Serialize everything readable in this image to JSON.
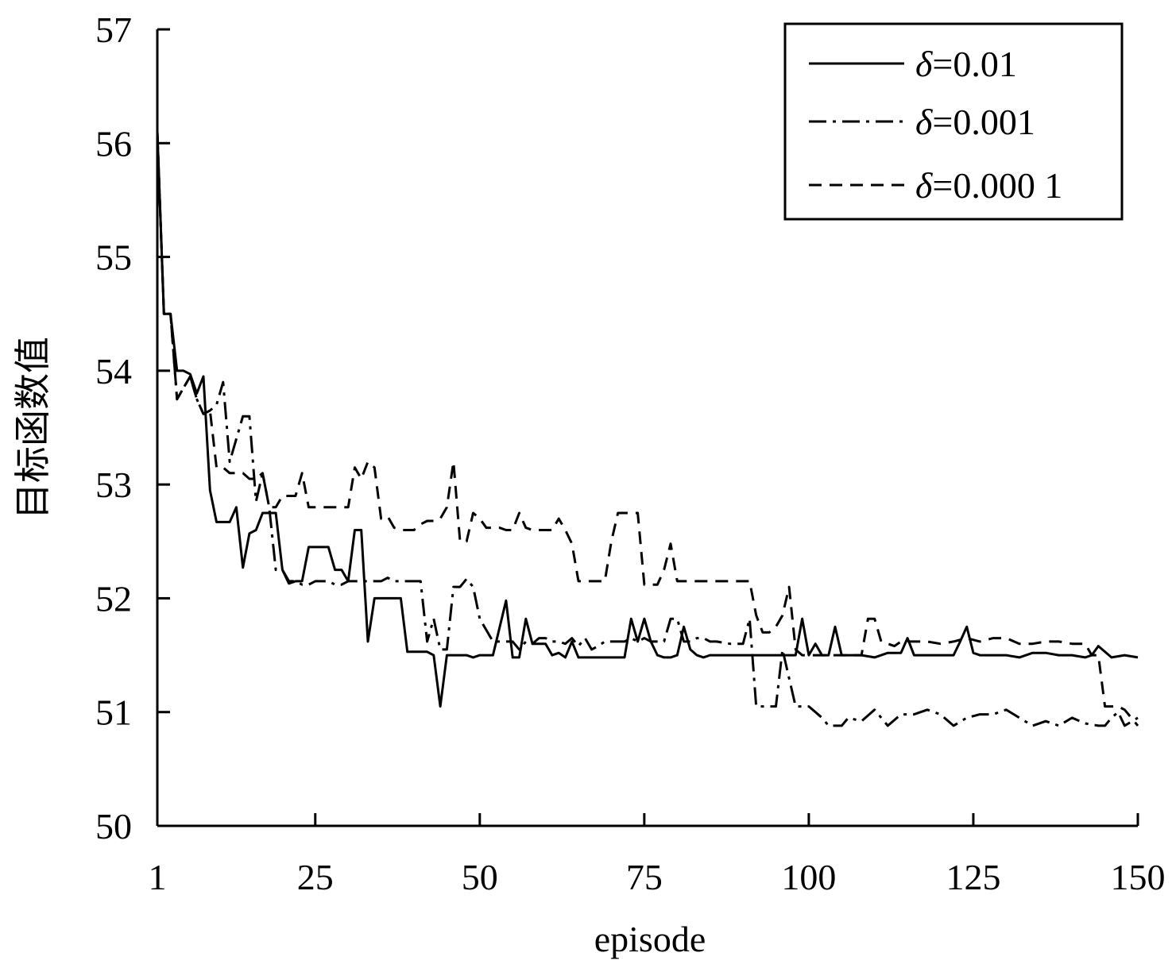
{
  "chart_data": {
    "type": "line",
    "xlabel": "episode",
    "ylabel": "目标函数值",
    "xlim": [
      1,
      150
    ],
    "ylim": [
      50,
      57
    ],
    "xticks": [
      1,
      25,
      50,
      75,
      100,
      125,
      150
    ],
    "yticks": [
      50,
      51,
      52,
      53,
      54,
      55,
      56,
      57
    ],
    "grid": false,
    "legend_position": "top-right",
    "series": [
      {
        "name": "δ=0.01",
        "legend_symbol": "δ",
        "legend_value": "=0.01",
        "style": "solid",
        "x": [
          1,
          2,
          3,
          4,
          5,
          6,
          7,
          8,
          9,
          10,
          11,
          12,
          13,
          14,
          15,
          16,
          17,
          18,
          19,
          20,
          21,
          22,
          23,
          24,
          25,
          26,
          27,
          28,
          29,
          30,
          31,
          32,
          33,
          34,
          35,
          36,
          37,
          38,
          39,
          40,
          41,
          42,
          43,
          44,
          45,
          46,
          47,
          48,
          49,
          50,
          52,
          54,
          55,
          56,
          57,
          58,
          59,
          60,
          61,
          62,
          63,
          64,
          65,
          66,
          67,
          68,
          69,
          70,
          71,
          72,
          73,
          74,
          75,
          76,
          77,
          78,
          79,
          80,
          81,
          82,
          83,
          84,
          85,
          86,
          88,
          90,
          95,
          98,
          99,
          100,
          101,
          102,
          103,
          104,
          105,
          106,
          108,
          110,
          112,
          114,
          115,
          116,
          118,
          120,
          122,
          123,
          124,
          125,
          126,
          128,
          130,
          132,
          134,
          136,
          138,
          140,
          142,
          143,
          144,
          146,
          148,
          150
        ],
        "y": [
          56.1,
          54.5,
          54.5,
          54.0,
          54.0,
          53.97,
          53.8,
          53.95,
          52.95,
          52.67,
          52.67,
          52.67,
          52.8,
          52.27,
          52.57,
          52.6,
          52.75,
          52.75,
          52.75,
          52.25,
          52.13,
          52.15,
          52.15,
          52.45,
          52.45,
          52.45,
          52.45,
          52.25,
          52.25,
          52.15,
          52.6,
          52.6,
          51.62,
          52.0,
          52.0,
          52.0,
          52.0,
          52.0,
          51.53,
          51.53,
          51.53,
          51.53,
          51.5,
          51.05,
          51.5,
          51.5,
          51.5,
          51.5,
          51.48,
          51.5,
          51.5,
          51.98,
          51.48,
          51.48,
          51.82,
          51.6,
          51.6,
          51.6,
          51.5,
          51.52,
          51.48,
          51.62,
          51.48,
          51.48,
          51.48,
          51.48,
          51.48,
          51.48,
          51.48,
          51.48,
          51.82,
          51.62,
          51.82,
          51.62,
          51.5,
          51.48,
          51.48,
          51.5,
          51.75,
          51.55,
          51.5,
          51.48,
          51.5,
          51.5,
          51.5,
          51.5,
          51.5,
          51.5,
          51.82,
          51.5,
          51.6,
          51.5,
          51.5,
          51.75,
          51.5,
          51.5,
          51.5,
          51.48,
          51.52,
          51.52,
          51.65,
          51.5,
          51.5,
          51.5,
          51.5,
          51.62,
          51.75,
          51.52,
          51.5,
          51.5,
          51.5,
          51.48,
          51.52,
          51.52,
          51.5,
          51.5,
          51.48,
          51.5,
          51.58,
          51.48,
          51.5,
          51.48
        ]
      },
      {
        "name": "δ=0.001",
        "legend_symbol": "δ",
        "legend_value": "=0.001",
        "style": "dashdot",
        "x": [
          1,
          2,
          3,
          4,
          5,
          6,
          7,
          8,
          9,
          10,
          11,
          12,
          13,
          14,
          15,
          16,
          17,
          18,
          19,
          20,
          21,
          22,
          23,
          24,
          25,
          26,
          27,
          28,
          29,
          30,
          31,
          32,
          33,
          34,
          35,
          36,
          37,
          38,
          39,
          40,
          41,
          42,
          43,
          44,
          45,
          46,
          47,
          48,
          49,
          50,
          52,
          54,
          55,
          56,
          57,
          58,
          59,
          60,
          61,
          62,
          63,
          64,
          65,
          66,
          67,
          68,
          69,
          70,
          71,
          72,
          73,
          74,
          75,
          76,
          77,
          78,
          79,
          80,
          81,
          82,
          83,
          84,
          85,
          86,
          88,
          90,
          91,
          92,
          93,
          94,
          95,
          96,
          98,
          99,
          100,
          101,
          102,
          103,
          104,
          105,
          106,
          108,
          110,
          112,
          114,
          116,
          118,
          120,
          122,
          124,
          126,
          128,
          130,
          132,
          134,
          136,
          138,
          140,
          142,
          144,
          145,
          146,
          147,
          148,
          150
        ],
        "y": [
          56.1,
          54.5,
          54.5,
          53.75,
          53.85,
          53.95,
          53.75,
          53.62,
          53.65,
          53.7,
          53.9,
          53.2,
          53.4,
          53.6,
          53.6,
          52.85,
          53.1,
          52.8,
          52.25,
          52.25,
          52.15,
          52.15,
          52.12,
          52.12,
          52.15,
          52.15,
          52.15,
          52.12,
          52.12,
          52.15,
          52.15,
          52.15,
          52.15,
          52.15,
          52.15,
          52.18,
          52.15,
          52.15,
          52.15,
          52.15,
          52.15,
          51.62,
          51.82,
          51.55,
          51.55,
          52.1,
          52.1,
          52.17,
          52.1,
          51.82,
          51.62,
          51.62,
          51.62,
          51.55,
          51.62,
          51.6,
          51.65,
          51.65,
          51.62,
          51.62,
          51.6,
          51.65,
          51.58,
          51.65,
          51.55,
          51.58,
          51.62,
          51.62,
          51.62,
          51.62,
          51.65,
          51.62,
          51.65,
          51.62,
          51.62,
          51.62,
          51.82,
          51.82,
          51.62,
          51.62,
          51.65,
          51.65,
          51.62,
          51.62,
          51.6,
          51.6,
          51.82,
          51.05,
          51.05,
          51.05,
          51.05,
          51.55,
          51.05,
          51.05,
          51.05,
          51.0,
          50.95,
          50.88,
          50.88,
          50.88,
          50.95,
          50.92,
          51.02,
          50.88,
          50.98,
          50.98,
          51.02,
          50.98,
          50.88,
          50.95,
          50.98,
          50.98,
          51.02,
          50.95,
          50.88,
          50.92,
          50.88,
          50.95,
          50.9,
          50.88,
          50.88,
          50.95,
          51.0,
          50.88,
          50.95
        ]
      },
      {
        "name": "δ=0.000 1",
        "legend_symbol": "δ",
        "legend_value": "=0.000 1",
        "style": "dashed",
        "x": [
          1,
          2,
          3,
          4,
          5,
          6,
          7,
          8,
          9,
          10,
          11,
          12,
          13,
          14,
          15,
          16,
          17,
          18,
          19,
          20,
          21,
          22,
          23,
          24,
          25,
          26,
          27,
          28,
          29,
          30,
          31,
          32,
          33,
          34,
          35,
          36,
          37,
          38,
          39,
          40,
          41,
          42,
          43,
          44,
          45,
          46,
          47,
          48,
          49,
          50,
          51,
          52,
          53,
          54,
          55,
          56,
          57,
          58,
          59,
          60,
          61,
          62,
          63,
          64,
          65,
          66,
          67,
          68,
          69,
          70,
          71,
          72,
          73,
          74,
          75,
          76,
          77,
          78,
          79,
          80,
          81,
          82,
          83,
          84,
          85,
          86,
          88,
          90,
          91,
          92,
          93,
          94,
          95,
          96,
          97,
          98,
          99,
          100,
          102,
          104,
          106,
          108,
          109,
          110,
          111,
          112,
          113,
          114,
          116,
          118,
          120,
          122,
          124,
          126,
          128,
          130,
          132,
          134,
          136,
          138,
          140,
          142,
          143,
          144,
          145,
          146,
          147,
          148,
          150
        ],
        "y": [
          56.1,
          54.5,
          54.5,
          53.75,
          53.85,
          53.95,
          53.75,
          53.62,
          53.65,
          53.15,
          53.15,
          53.1,
          53.1,
          53.1,
          53.05,
          53.05,
          53.1,
          52.8,
          52.8,
          52.9,
          52.9,
          52.9,
          53.1,
          52.8,
          52.8,
          52.8,
          52.8,
          52.8,
          52.8,
          52.8,
          53.15,
          53.05,
          53.2,
          53.15,
          52.7,
          52.72,
          52.62,
          52.6,
          52.6,
          52.6,
          52.65,
          52.68,
          52.68,
          52.7,
          52.8,
          53.2,
          52.5,
          52.5,
          52.75,
          52.7,
          52.62,
          52.62,
          52.62,
          52.6,
          52.6,
          52.75,
          52.62,
          52.6,
          52.6,
          52.6,
          52.6,
          52.7,
          52.6,
          52.48,
          52.15,
          52.15,
          52.15,
          52.15,
          52.15,
          52.5,
          52.75,
          52.75,
          52.75,
          52.75,
          52.12,
          52.12,
          52.12,
          52.25,
          52.48,
          52.15,
          52.15,
          52.15,
          52.15,
          52.15,
          52.15,
          52.15,
          52.15,
          52.15,
          52.15,
          51.85,
          51.7,
          51.7,
          51.75,
          51.85,
          52.1,
          51.55,
          51.5,
          51.5,
          51.5,
          51.5,
          51.5,
          51.5,
          51.82,
          51.82,
          51.62,
          51.6,
          51.58,
          51.62,
          51.62,
          51.62,
          51.6,
          51.62,
          51.65,
          51.62,
          51.65,
          51.65,
          51.6,
          51.6,
          51.62,
          51.62,
          51.6,
          51.6,
          51.5,
          51.5,
          51.05,
          51.05,
          51.05,
          51.02,
          50.88
        ]
      }
    ]
  }
}
